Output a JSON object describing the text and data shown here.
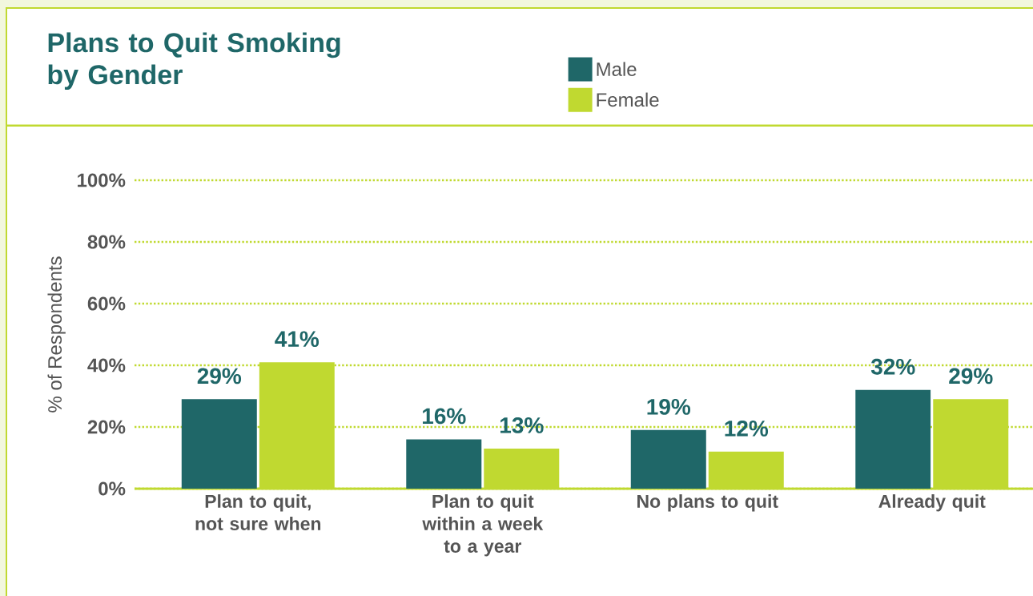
{
  "chart_data": {
    "type": "bar",
    "title": "Plans to Quit Smoking by Gender",
    "ylabel": "% of Respondents",
    "categories": [
      "Plan to quit, not sure when",
      "Plan to quit within a week to a year",
      "No plans to quit",
      "Already quit"
    ],
    "series": [
      {
        "name": "Male",
        "color": "#1f6768",
        "values": [
          29,
          16,
          19,
          32
        ],
        "value_labels": [
          "29%",
          "16%",
          "19%",
          "32%"
        ]
      },
      {
        "name": "Female",
        "color": "#c0d930",
        "values": [
          41,
          13,
          12,
          29
        ],
        "value_labels": [
          "41%",
          "13%",
          "12%",
          "29%"
        ]
      }
    ],
    "ylim": [
      0,
      100
    ],
    "yticks": [
      {
        "value": 0,
        "label": "0%"
      },
      {
        "value": 20,
        "label": "20%"
      },
      {
        "value": 40,
        "label": "40%"
      },
      {
        "value": 60,
        "label": "60%"
      },
      {
        "value": 80,
        "label": "80%"
      },
      {
        "value": 100,
        "label": "100%"
      }
    ],
    "grid": "y",
    "legend": "top"
  }
}
